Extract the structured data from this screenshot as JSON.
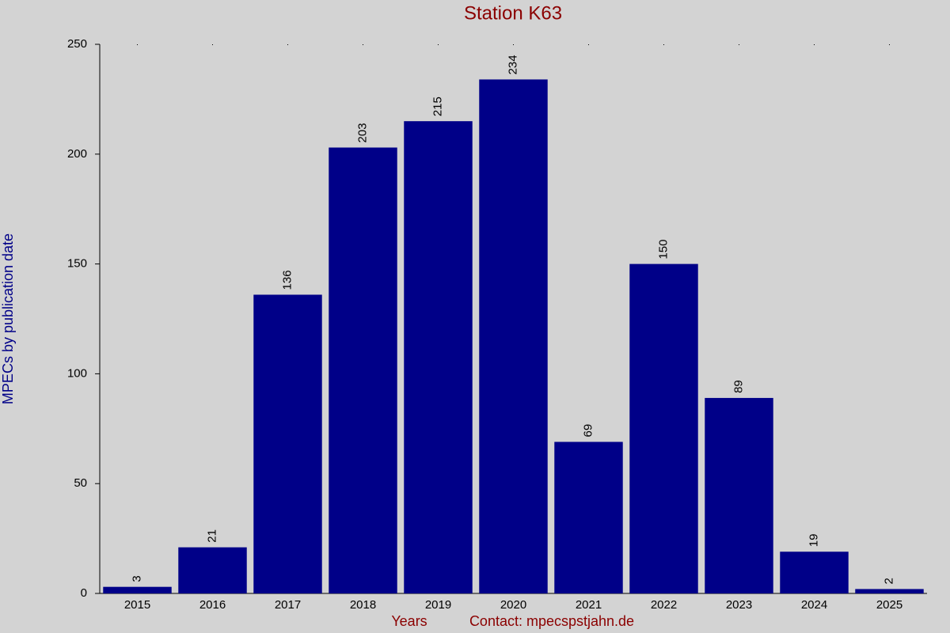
{
  "chart_data": {
    "type": "bar",
    "title": "Station K63",
    "x_label": "Years",
    "annotation": "Contact: mpecspstjahn.de",
    "y_label": "MPECs by publication date",
    "categories": [
      "2015",
      "2016",
      "2017",
      "2018",
      "2019",
      "2020",
      "2021",
      "2022",
      "2023",
      "2024",
      "2025"
    ],
    "values": [
      3,
      21,
      136,
      203,
      215,
      234,
      69,
      150,
      89,
      19,
      2
    ],
    "color": "#000088",
    "ylim": [
      0,
      250
    ],
    "yticks": [
      0,
      50,
      100,
      150,
      200,
      250
    ],
    "grid": false
  }
}
